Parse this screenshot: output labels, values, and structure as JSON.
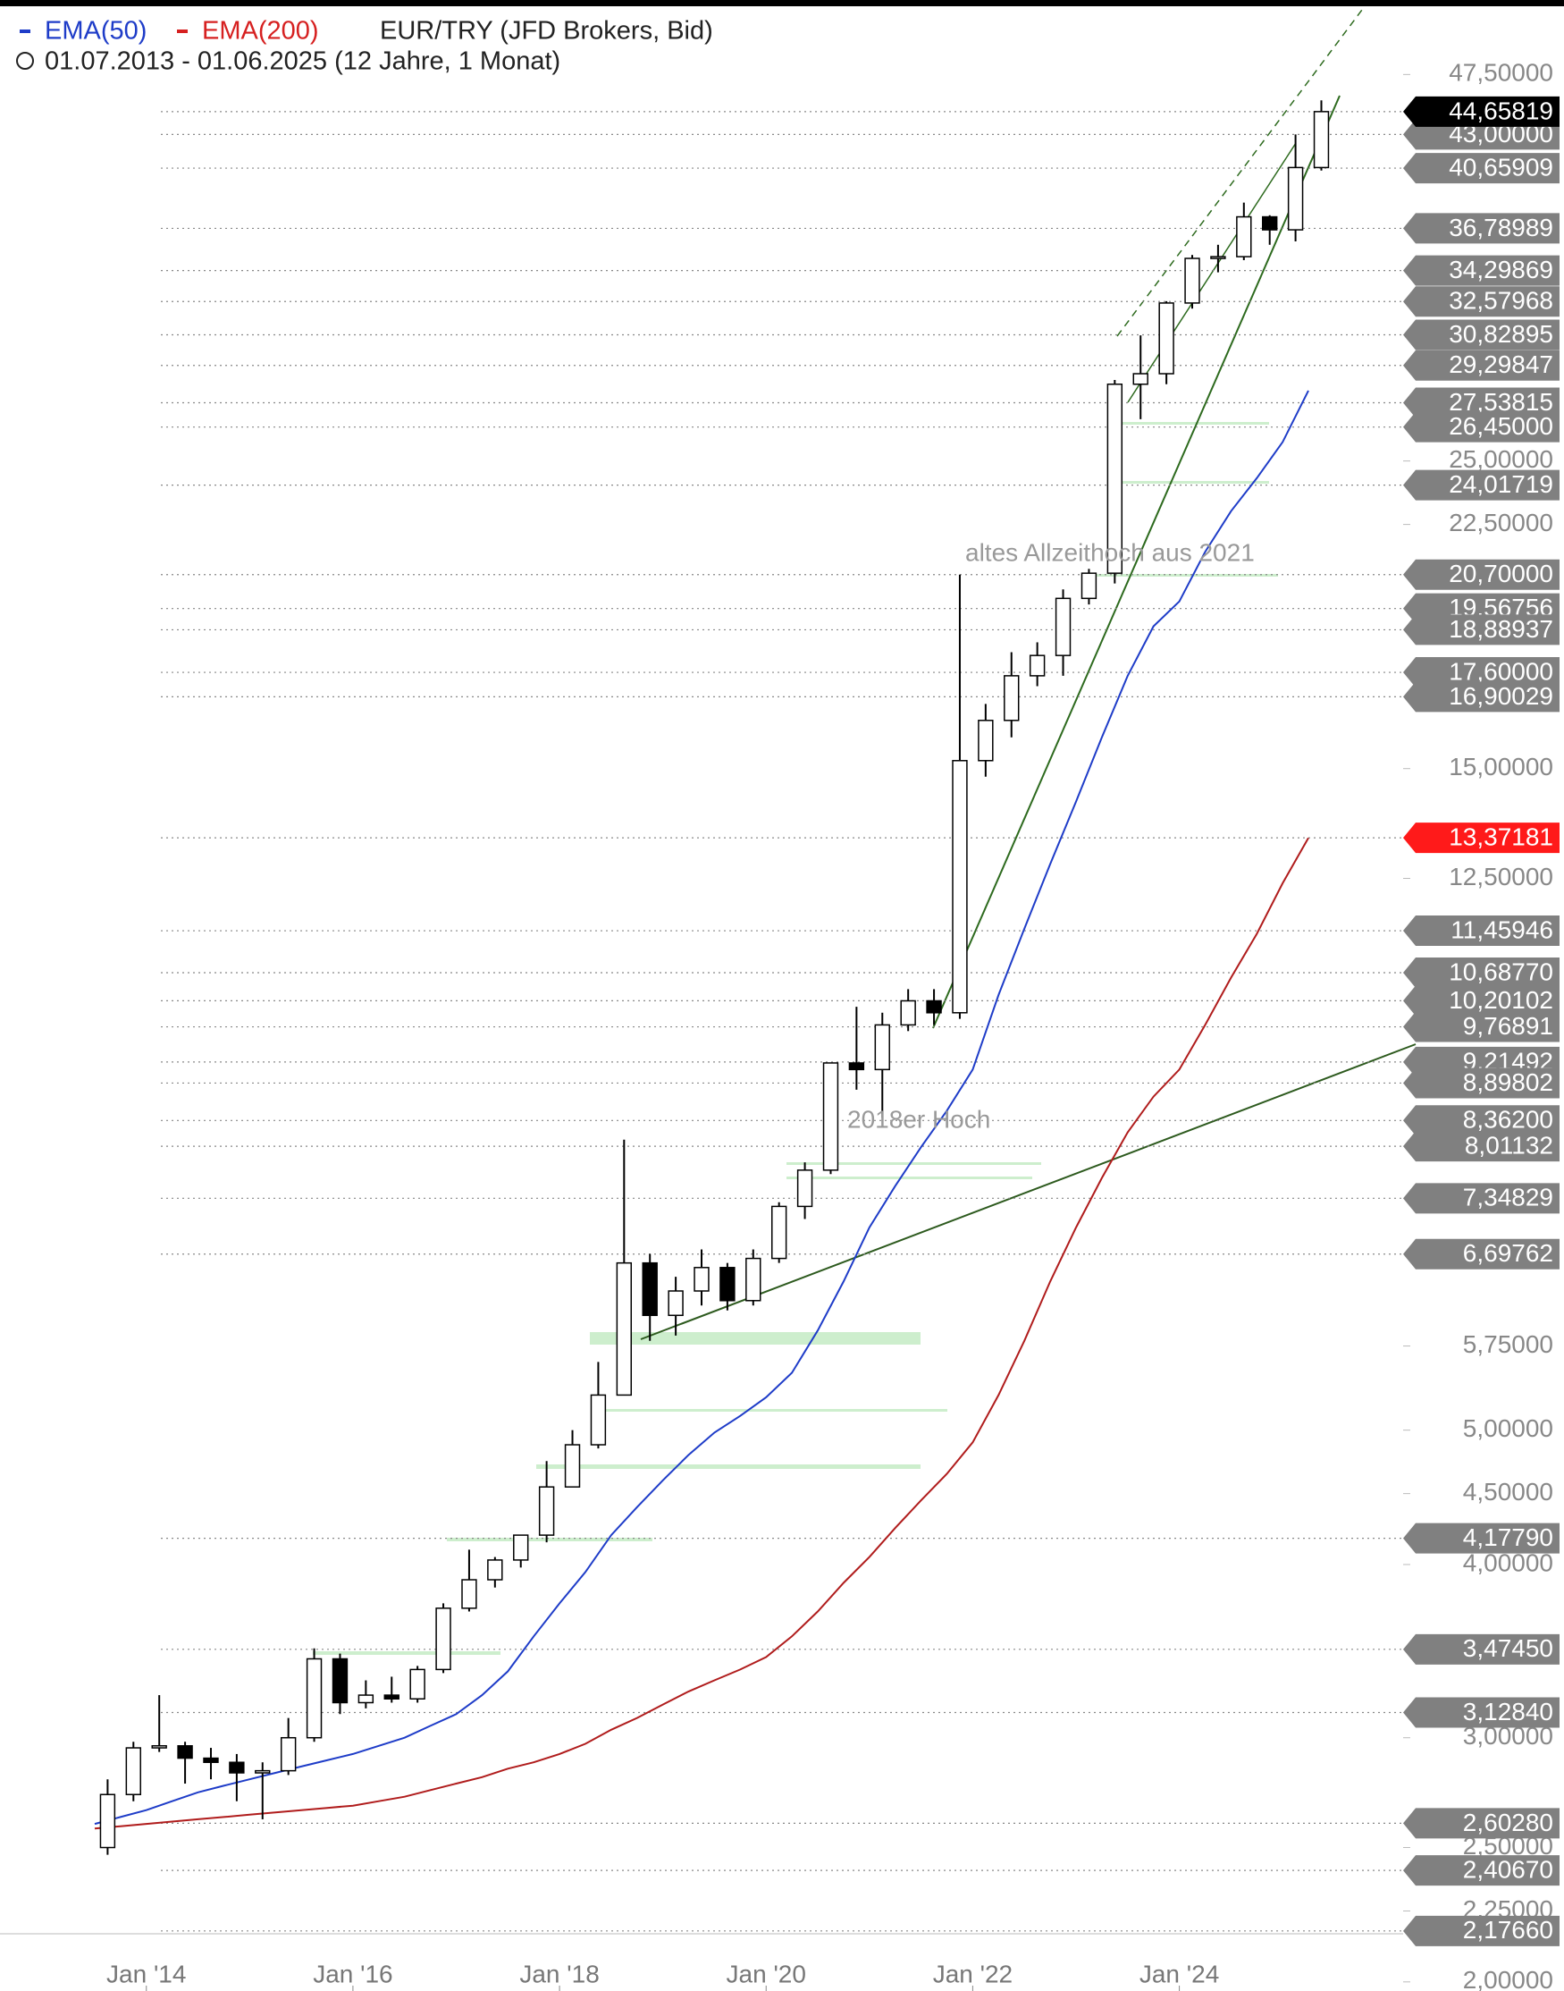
{
  "chart_data": {
    "type": "candlestick",
    "subtitle": "01.07.2013 - 01.06.2025  (12 Jahre, 1 Monat)",
    "annotations": [
      "altes Allzeithoch aus 2021",
      "2018er Hoch"
    ],
    "log_scale": true,
    "xlim": [
      "2012-08",
      "2026-03"
    ],
    "ylim": [
      1.97,
      53.2
    ],
    "xticks": [
      {
        "value": "2014-01",
        "label": "Jan '14"
      },
      {
        "value": "2016-01",
        "label": "Jan '16"
      },
      {
        "value": "2018-01",
        "label": "Jan '18"
      },
      {
        "value": "2020-01",
        "label": "Jan '20"
      },
      {
        "value": "2022-01",
        "label": "Jan '22"
      },
      {
        "value": "2024-01",
        "label": "Jan '24"
      }
    ],
    "yticks": [
      {
        "value": 47.5,
        "label": "47,50000"
      },
      {
        "value": 25,
        "label": "25,00000"
      },
      {
        "value": 22.5,
        "label": "22,50000"
      },
      {
        "value": 15,
        "label": "15,00000"
      },
      {
        "value": 12.5,
        "label": "12,50000"
      },
      {
        "value": 5.75,
        "label": "5,75000"
      },
      {
        "value": 5,
        "label": "5,00000"
      },
      {
        "value": 4.5,
        "label": "4,50000"
      },
      {
        "value": 4,
        "label": "4,00000"
      },
      {
        "value": 3,
        "label": "3,00000"
      },
      {
        "value": 2.5,
        "label": "2,50000"
      },
      {
        "value": 2.25,
        "label": "2,25000"
      },
      {
        "value": 2,
        "label": "2,00000"
      }
    ],
    "x": [
      "2013-07",
      "2013-10",
      "2014-01",
      "2014-04",
      "2014-07",
      "2014-10",
      "2015-01",
      "2015-04",
      "2015-07",
      "2015-10",
      "2016-01",
      "2016-04",
      "2016-07",
      "2016-10",
      "2017-01",
      "2017-04",
      "2017-07",
      "2017-10",
      "2018-01",
      "2018-04",
      "2018-07",
      "2018-10",
      "2019-01",
      "2019-04",
      "2019-07",
      "2019-10",
      "2020-01",
      "2020-04",
      "2020-07",
      "2020-10",
      "2021-01",
      "2021-04",
      "2021-07",
      "2021-10",
      "2022-01",
      "2022-04",
      "2022-07",
      "2022-10",
      "2023-01",
      "2023-04",
      "2023-07",
      "2023-10",
      "2024-01",
      "2024-04",
      "2024-07",
      "2024-10",
      "2025-01",
      "2025-04"
    ],
    "candles": {
      "name": "EUR/TRY (JFD Brokers, Bid)",
      "up_color": "#ffffff",
      "down_color": "#000000",
      "open": [
        2.5,
        2.73,
        2.95,
        2.96,
        2.9,
        2.88,
        2.83,
        2.84,
        3.0,
        3.42,
        3.18,
        3.22,
        3.2,
        3.36,
        3.72,
        3.9,
        4.03,
        4.2,
        4.55,
        4.88,
        5.3,
        6.6,
        6.05,
        6.3,
        6.55,
        6.2,
        6.65,
        7.25,
        7.7,
        9.2,
        9.1,
        9.8,
        10.2,
        10.0,
        15.2,
        16.25,
        17.5,
        18.1,
        19.9,
        20.75,
        28.4,
        28.9,
        32.5,
        35.0,
        35.1,
        37.5,
        36.7,
        40.7
      ],
      "high": [
        2.8,
        2.98,
        3.22,
        2.98,
        2.95,
        2.92,
        2.88,
        3.1,
        3.48,
        3.45,
        3.3,
        3.32,
        3.38,
        3.75,
        4.1,
        4.05,
        4.18,
        4.75,
        5.0,
        5.6,
        8.1,
        6.7,
        6.45,
        6.75,
        6.6,
        6.75,
        7.3,
        7.8,
        9.2,
        10.1,
        10.0,
        10.4,
        10.4,
        20.7,
        16.7,
        18.2,
        18.5,
        20.2,
        20.9,
        28.6,
        30.8,
        32.6,
        35.2,
        35.8,
        38.4,
        37.6,
        43.0,
        45.5
      ],
      "low": [
        2.47,
        2.7,
        2.93,
        2.78,
        2.8,
        2.7,
        2.62,
        2.82,
        2.98,
        3.12,
        3.15,
        3.18,
        3.18,
        3.34,
        3.7,
        3.85,
        3.98,
        4.15,
        4.55,
        4.85,
        5.3,
        5.8,
        5.85,
        6.15,
        6.1,
        6.15,
        6.6,
        7.1,
        7.65,
        8.8,
        8.4,
        9.7,
        9.8,
        9.9,
        14.8,
        15.8,
        17.2,
        17.5,
        19.7,
        20.4,
        26.8,
        28.4,
        32.2,
        34.2,
        34.9,
        35.8,
        36.0,
        40.5
      ],
      "close": [
        2.73,
        2.95,
        2.96,
        2.9,
        2.88,
        2.83,
        2.84,
        3.0,
        3.42,
        3.18,
        3.22,
        3.2,
        3.36,
        3.72,
        3.9,
        4.03,
        4.2,
        4.55,
        4.88,
        5.3,
        6.6,
        6.05,
        6.3,
        6.55,
        6.2,
        6.65,
        7.25,
        7.7,
        9.2,
        9.1,
        9.8,
        10.2,
        10.0,
        15.2,
        16.25,
        17.5,
        18.1,
        19.9,
        20.75,
        28.4,
        28.9,
        32.5,
        35.0,
        35.1,
        37.5,
        36.7,
        40.7,
        44.66
      ]
    },
    "series": [
      {
        "name": "EMA(50)",
        "color": "#1e3cc8",
        "values": [
          2.6,
          2.63,
          2.66,
          2.7,
          2.74,
          2.77,
          2.8,
          2.83,
          2.86,
          2.89,
          2.92,
          2.96,
          3.0,
          3.06,
          3.12,
          3.22,
          3.35,
          3.55,
          3.75,
          3.95,
          4.2,
          4.4,
          4.6,
          4.8,
          4.98,
          5.12,
          5.28,
          5.5,
          5.9,
          6.4,
          7.0,
          7.5,
          8.0,
          8.5,
          9.1,
          10.3,
          11.5,
          12.8,
          14.2,
          15.8,
          17.5,
          19.0,
          19.8,
          21.5,
          23.0,
          24.3,
          25.8,
          28.1
        ]
      },
      {
        "name": "EMA(200)",
        "color": "#b01c1c",
        "values": [
          2.58,
          2.59,
          2.6,
          2.61,
          2.62,
          2.63,
          2.64,
          2.65,
          2.66,
          2.67,
          2.68,
          2.7,
          2.72,
          2.75,
          2.78,
          2.81,
          2.85,
          2.88,
          2.92,
          2.97,
          3.04,
          3.1,
          3.17,
          3.24,
          3.3,
          3.36,
          3.43,
          3.55,
          3.7,
          3.88,
          4.05,
          4.25,
          4.45,
          4.65,
          4.9,
          5.3,
          5.8,
          6.4,
          7.0,
          7.6,
          8.2,
          8.7,
          9.1,
          9.8,
          10.6,
          11.4,
          12.4,
          13.37
        ]
      }
    ],
    "current_price": {
      "value": 44.65819,
      "label": "44,65819",
      "color": "#000000"
    },
    "ema200_price": {
      "value": 13.37181,
      "label": "13,37181",
      "color": "#ff1a1a"
    },
    "level_color": "#808080",
    "levels": [
      {
        "value": 43.0,
        "label": "43,00000"
      },
      {
        "value": 40.65909,
        "label": "40,65909"
      },
      {
        "value": 36.78989,
        "label": "36,78989"
      },
      {
        "value": 34.29869,
        "label": "34,29869"
      },
      {
        "value": 32.57968,
        "label": "32,57968"
      },
      {
        "value": 30.82895,
        "label": "30,82895"
      },
      {
        "value": 29.29847,
        "label": "29,29847"
      },
      {
        "value": 27.53815,
        "label": "27,53815"
      },
      {
        "value": 26.45,
        "label": "26,45000"
      },
      {
        "value": 24.01719,
        "label": "24,01719"
      },
      {
        "value": 20.7,
        "label": "20,70000"
      },
      {
        "value": 19.56756,
        "label": "19,56756"
      },
      {
        "value": 18.88937,
        "label": "18,88937"
      },
      {
        "value": 17.6,
        "label": "17,60000"
      },
      {
        "value": 16.90029,
        "label": "16,90029"
      },
      {
        "value": 11.45946,
        "label": "11,45946"
      },
      {
        "value": 10.6877,
        "label": "10,68770"
      },
      {
        "value": 10.20102,
        "label": "10,20102"
      },
      {
        "value": 9.76891,
        "label": "9,76891"
      },
      {
        "value": 9.21492,
        "label": "9,21492"
      },
      {
        "value": 8.89802,
        "label": "8,89802"
      },
      {
        "value": 8.362,
        "label": "8,36200"
      },
      {
        "value": 8.01132,
        "label": "8,01132"
      },
      {
        "value": 7.34829,
        "label": "7,34829"
      },
      {
        "value": 6.69762,
        "label": "6,69762"
      },
      {
        "value": 4.1779,
        "label": "4,17790"
      },
      {
        "value": 3.4745,
        "label": "3,47450"
      },
      {
        "value": 3.1284,
        "label": "3,12840"
      },
      {
        "value": 2.6028,
        "label": "2,60280"
      },
      {
        "value": 2.4067,
        "label": "2,40670"
      },
      {
        "value": 2.1766,
        "label": "2,17660"
      }
    ]
  }
}
